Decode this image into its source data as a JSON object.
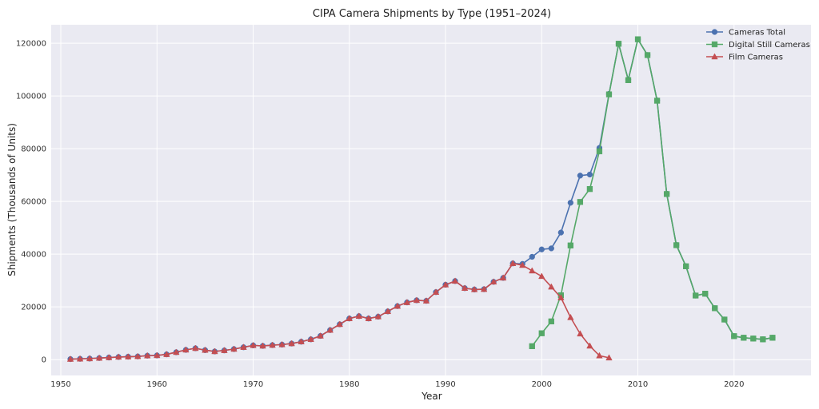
{
  "chart_data": {
    "type": "line",
    "title": "CIPA Camera Shipments by Type (1951–2024)",
    "xlabel": "Year",
    "ylabel": "Shipments (Thousands of Units)",
    "xlim": [
      1949,
      2028
    ],
    "ylim": [
      -6000,
      127000
    ],
    "xticks": [
      1950,
      1960,
      1970,
      1980,
      1990,
      2000,
      2010,
      2020
    ],
    "yticks": [
      0,
      20000,
      40000,
      60000,
      80000,
      100000,
      120000
    ],
    "grid": true,
    "legend_position": "top-right",
    "series": [
      {
        "name": "Cameras Total",
        "color": "#4c72b0",
        "marker": "circle",
        "x": [
          1951,
          1952,
          1953,
          1954,
          1955,
          1956,
          1957,
          1958,
          1959,
          1960,
          1961,
          1962,
          1963,
          1964,
          1965,
          1966,
          1967,
          1968,
          1969,
          1970,
          1971,
          1972,
          1973,
          1974,
          1975,
          1976,
          1977,
          1978,
          1979,
          1980,
          1981,
          1982,
          1983,
          1984,
          1985,
          1986,
          1987,
          1988,
          1989,
          1990,
          1991,
          1992,
          1993,
          1994,
          1995,
          1996,
          1997,
          1998,
          1999,
          2000,
          2001,
          2002,
          2003,
          2004,
          2005,
          2006,
          2007,
          2008,
          2009,
          2010,
          2011,
          2012,
          2013,
          2014,
          2015,
          2016,
          2017,
          2018,
          2019,
          2020,
          2021,
          2022,
          2023,
          2024
        ],
        "values": [
          200,
          300,
          400,
          600,
          800,
          1000,
          1100,
          1200,
          1500,
          1600,
          2000,
          2800,
          3700,
          4300,
          3600,
          3100,
          3500,
          4000,
          4700,
          5400,
          5200,
          5500,
          5700,
          6100,
          6800,
          7700,
          9000,
          11200,
          13400,
          15600,
          16500,
          15600,
          16300,
          18300,
          20300,
          21700,
          22500,
          22300,
          25600,
          28400,
          29800,
          27100,
          26600,
          26700,
          29500,
          31000,
          36500,
          36300,
          39000,
          41800,
          42200,
          48200,
          59500,
          69800,
          70200,
          80300,
          100800,
          119800,
          106200,
          121500,
          115500,
          98300,
          62900,
          43500,
          35400,
          24300,
          25000,
          19500,
          15200,
          8900,
          8300,
          8000,
          7700,
          8300
        ]
      },
      {
        "name": "Digital Still Cameras",
        "color": "#55a868",
        "marker": "square",
        "x": [
          1999,
          2000,
          2001,
          2002,
          2003,
          2004,
          2005,
          2006,
          2007,
          2008,
          2009,
          2010,
          2011,
          2012,
          2013,
          2014,
          2015,
          2016,
          2017,
          2018,
          2019,
          2020,
          2021,
          2022,
          2023,
          2024
        ],
        "values": [
          5100,
          10000,
          14500,
          24400,
          43300,
          59800,
          64700,
          79000,
          100600,
          119800,
          106000,
          121500,
          115500,
          98200,
          62800,
          43400,
          35400,
          24300,
          25000,
          19500,
          15200,
          8900,
          8300,
          8000,
          7700,
          8300
        ]
      },
      {
        "name": "Film Cameras",
        "color": "#c44e52",
        "marker": "triangle",
        "x": [
          1951,
          1952,
          1953,
          1954,
          1955,
          1956,
          1957,
          1958,
          1959,
          1960,
          1961,
          1962,
          1963,
          1964,
          1965,
          1966,
          1967,
          1968,
          1969,
          1970,
          1971,
          1972,
          1973,
          1974,
          1975,
          1976,
          1977,
          1978,
          1979,
          1980,
          1981,
          1982,
          1983,
          1984,
          1985,
          1986,
          1987,
          1988,
          1989,
          1990,
          1991,
          1992,
          1993,
          1994,
          1995,
          1996,
          1997,
          1998,
          1999,
          2000,
          2001,
          2002,
          2003,
          2004,
          2005,
          2006,
          2007
        ],
        "values": [
          200,
          300,
          400,
          600,
          800,
          1000,
          1100,
          1200,
          1500,
          1600,
          2000,
          2800,
          3700,
          4300,
          3600,
          3100,
          3500,
          4000,
          4700,
          5400,
          5200,
          5500,
          5700,
          6100,
          6800,
          7700,
          9000,
          11200,
          13400,
          15600,
          16500,
          15600,
          16300,
          18300,
          20300,
          21700,
          22500,
          22300,
          25600,
          28400,
          29800,
          27100,
          26600,
          26700,
          29500,
          31000,
          36500,
          35800,
          33700,
          31600,
          27600,
          23500,
          16000,
          9800,
          5200,
          1500,
          700
        ]
      }
    ]
  }
}
